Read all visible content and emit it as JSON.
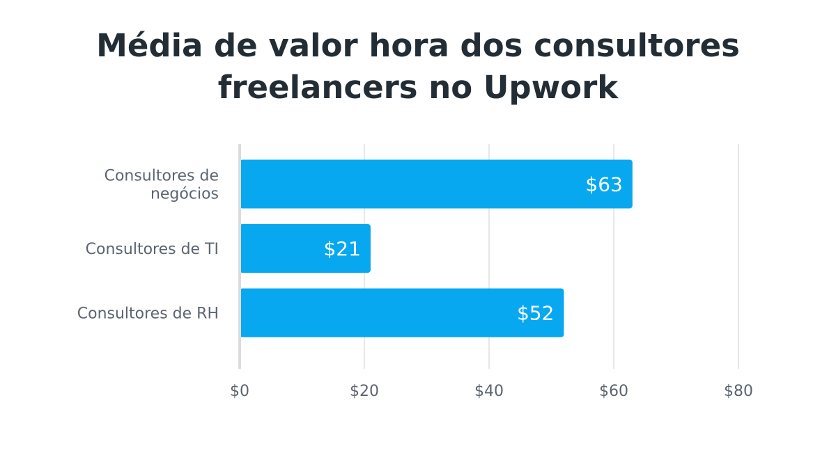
{
  "title_lines": [
    "Média de valor hora dos consultores",
    "freelancers no Upwork"
  ],
  "chart_data": {
    "type": "bar",
    "orientation": "horizontal",
    "title": "Média de valor hora dos consultores freelancers no Upwork",
    "categories": [
      [
        "Consultores de",
        "negócios"
      ],
      [
        "Consultores de TI"
      ],
      [
        "Consultores de RH"
      ]
    ],
    "values": [
      63,
      21,
      52
    ],
    "value_labels": [
      "$63",
      "$21",
      "$52"
    ],
    "xlim": [
      0,
      80
    ],
    "xticks": [
      0,
      20,
      40,
      60,
      80
    ],
    "xtick_labels": [
      "$0",
      "$20",
      "$40",
      "$60",
      "$80"
    ],
    "xlabel": "",
    "ylabel": "",
    "grid": "vertical",
    "legend": "none",
    "colors": {
      "bar": "#07a8f0",
      "bar_label": "#ffffff",
      "grid": "#e7e7e7",
      "axis": "#dcdcdc",
      "tick_text": "#5b6470",
      "category_text": "#5b6470",
      "title": "#232d36"
    }
  }
}
